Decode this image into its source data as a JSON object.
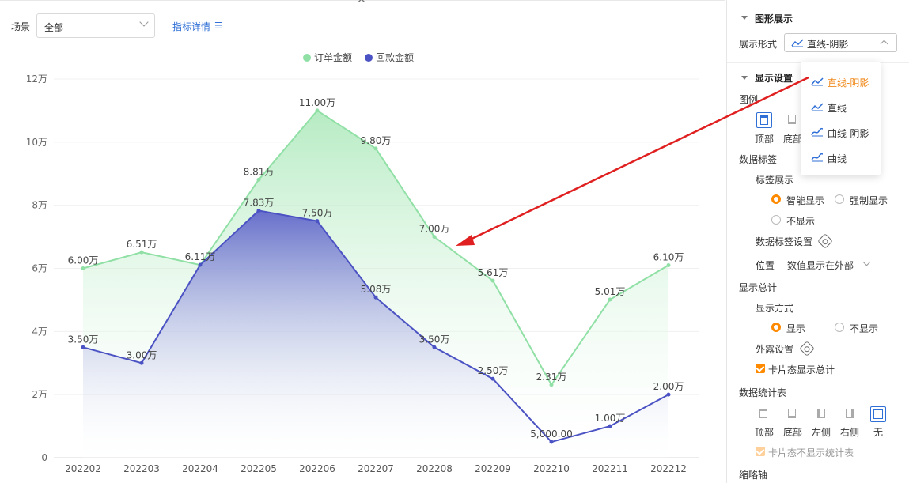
{
  "toolbar": {
    "scene_label": "场景",
    "scene_value": "全部",
    "detail_label": "指标详情",
    "detail_icon": "list-icon",
    "close_icon": "close-icon"
  },
  "legend": [
    "订单金额",
    "回款金额"
  ],
  "chart_data": {
    "type": "area",
    "categories": [
      "202202",
      "202203",
      "202204",
      "202205",
      "202206",
      "202207",
      "202208",
      "202209",
      "202210",
      "202211",
      "202212"
    ],
    "series": [
      {
        "name": "订单金额",
        "color": "#90e0a6",
        "values": [
          60000,
          65100,
          61100,
          88100,
          110000,
          98000,
          70000,
          56100,
          23100,
          50100,
          61000
        ],
        "labels": [
          "6.00万",
          "6.51万",
          "6.11万",
          "8.81万",
          "11.00万",
          "9.80万",
          "7.00万",
          "5.61万",
          "2.31万",
          "5.01万",
          "6.10万"
        ]
      },
      {
        "name": "回款金额",
        "color": "#4b52c3",
        "values": [
          35000,
          30000,
          61100,
          78300,
          75000,
          50800,
          35000,
          25000,
          5000,
          10000,
          20000
        ],
        "labels": [
          "3.50万",
          "3.00万",
          "",
          "7.83万",
          "7.50万",
          "5.08万",
          "3.50万",
          "2.50万",
          "5,000.00",
          "1.00万",
          "2.00万"
        ]
      }
    ],
    "ylim": [
      0,
      120000
    ],
    "yticks": [
      "0",
      "2万",
      "4万",
      "6万",
      "8万",
      "10万",
      "12万"
    ],
    "grid": true,
    "legend_position": "top-center"
  },
  "panel": {
    "graph_section": "图形展示",
    "display_form_label": "展示形式",
    "display_form_value": "直线-阴影",
    "display_settings": "显示设置",
    "legend_label": "图例",
    "legend_pos_top": "顶部",
    "legend_pos_bottom": "底部",
    "data_labels": "数据标签",
    "label_display": "标签展示",
    "label_opt_smart": "智能显示",
    "label_opt_force": "强制显示",
    "label_opt_none": "不显示",
    "label_settings": "数据标签设置",
    "position_label": "位置",
    "position_value": "数值显示在外部",
    "show_total": "显示总计",
    "show_mode": "显示方式",
    "show_opt_show": "显示",
    "show_opt_hide": "不显示",
    "exposure_settings": "外露设置",
    "card_show_total": "卡片态显示总计",
    "stats_table": "数据统计表",
    "stats_pos": [
      "顶部",
      "底部",
      "左侧",
      "右侧",
      "无"
    ],
    "card_hide_stats": "卡片态不显示统计表",
    "zoom_axis": "缩略轴"
  },
  "dropdown": {
    "items": [
      "直线-阴影",
      "直线",
      "曲线-阴影",
      "曲线"
    ],
    "selected": "直线-阴影",
    "accent": "#f08a1c"
  },
  "colors": {
    "primary": "#2f6fd6",
    "accent": "#ff8a00",
    "annotation_arrow": "#e02020"
  }
}
